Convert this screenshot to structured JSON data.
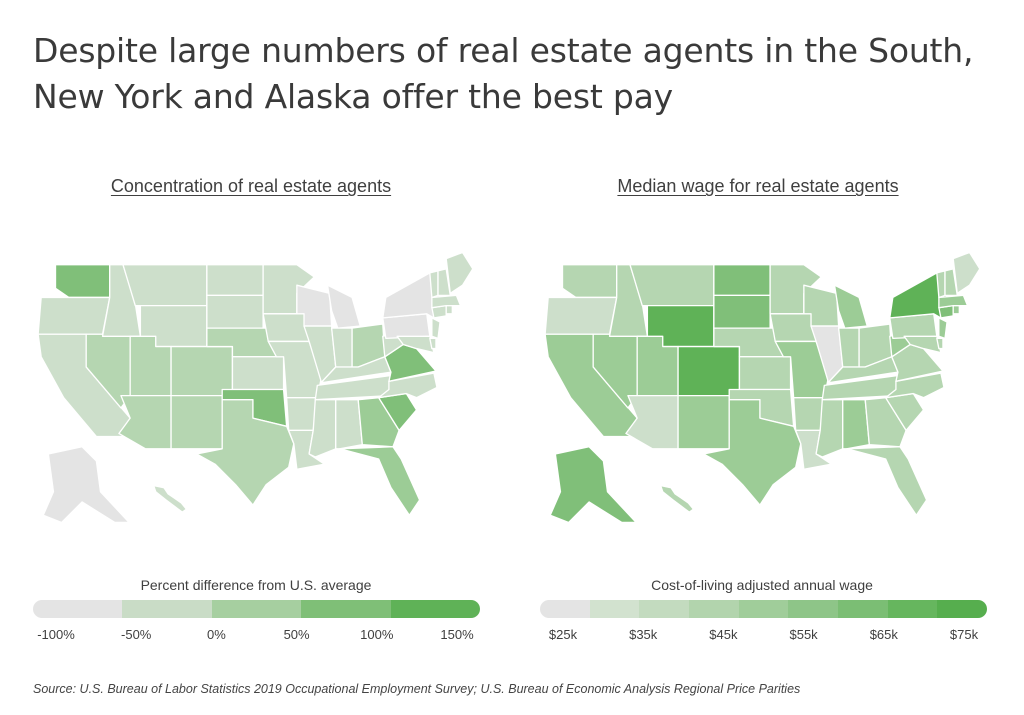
{
  "title": "Despite large numbers of real estate agents in the South, New York and Alaska offer the best pay",
  "left_map": {
    "title": "Concentration of real estate agents",
    "legend_title": "Percent difference from U.S. average",
    "ticks": [
      "-100%",
      "-50%",
      "0%",
      "50%",
      "100%",
      "150%"
    ]
  },
  "right_map": {
    "title": "Median wage for real estate agents",
    "legend_title": "Cost-of-living adjusted annual wage",
    "ticks": [
      "$25k",
      "$35k",
      "$45k",
      "$55k",
      "$65k",
      "$75k"
    ]
  },
  "colors": {
    "c0": "#e4e4e4",
    "c1": "#cddfcb",
    "c2": "#b5d6b1",
    "c3": "#9ccc96",
    "c4": "#80bf79",
    "c5": "#5fb257",
    "left_scale": [
      "#e4e4e4",
      "#c9dcc6",
      "#a6cfa0",
      "#7fbf77",
      "#5fb257"
    ],
    "right_scale": [
      "#e4e4e4",
      "#d2e2cf",
      "#c3dbbf",
      "#b2d4ad",
      "#a0cd9a",
      "#8ec588",
      "#7bbe74",
      "#66b65e",
      "#56ae4e"
    ]
  },
  "chart_data": [
    {
      "type": "choropleth",
      "title": "Concentration of real estate agents",
      "legend": "Percent difference from U.S. average",
      "scale": [
        "-100%",
        "-50%",
        "0%",
        "50%",
        "100%",
        "150%"
      ],
      "highlights": {
        "Washington": "high",
        "Oklahoma": "high",
        "Virginia": "high",
        "South Carolina": "high",
        "Florida": "high"
      }
    },
    {
      "type": "choropleth",
      "title": "Median wage for real estate agents",
      "legend": "Cost-of-living adjusted annual wage",
      "scale": [
        "$25k",
        "$35k",
        "$45k",
        "$55k",
        "$65k",
        "$75k"
      ],
      "highlights": {
        "New York": "high",
        "Alaska": "high",
        "Wyoming": "high",
        "Colorado": "high",
        "North Dakota": "high",
        "South Dakota": "high"
      }
    }
  ],
  "source": "Source:  U.S. Bureau of Labor Statistics 2019 Occupational Employment Survey; U.S. Bureau of Economic Analysis Regional Price Parities"
}
